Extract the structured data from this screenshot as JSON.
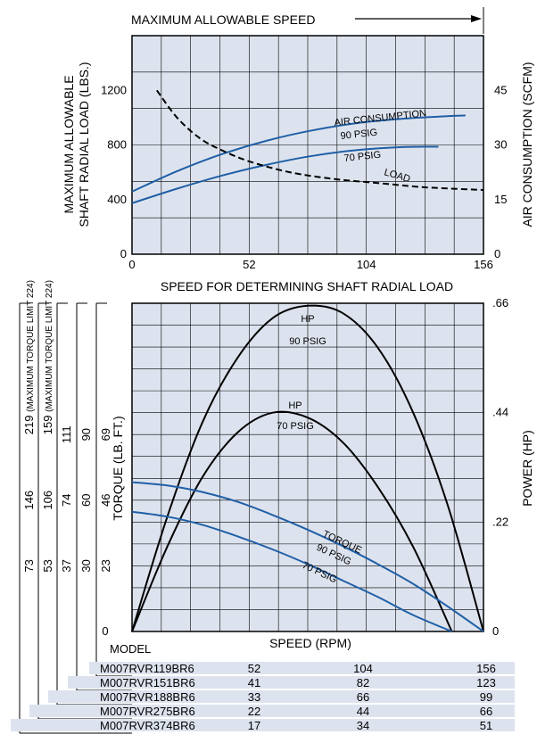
{
  "colors": {
    "plot_bg": "#dde3ee",
    "blue": "#1f5fa6",
    "table_bg": "#dde3ee"
  },
  "top_chart": {
    "header": "MAXIMUM ALLOWABLE SPEED",
    "ylabel_left": [
      "MAXIMUM ALLOWABLE",
      "SHAFT RADIAL LOAD (LBS.)"
    ],
    "ylabel_right": "AIR CONSUMPTION (SCFM)",
    "xlabel": "SPEED FOR DETERMINING SHAFT RADIAL LOAD",
    "label_air": "AIR CONSUMPTION",
    "label_90": "90 PSIG",
    "label_70": "70 PSIG",
    "label_load": "LOAD"
  },
  "bottom_chart": {
    "ylabel_left": "TORQUE (LB. FT.)",
    "ylabel_right": "POWER (HP)",
    "xlabel": "SPEED (RPM)",
    "model_label": "MODEL",
    "hp_label": "HP",
    "hp90_label": "90 PSIG",
    "hp70_label": "70 PSIG",
    "torque_label": "TORQUE",
    "t90_label": "90 PSIG",
    "t70_label": "70 PSIG"
  },
  "chart_data": [
    {
      "type": "line",
      "title": "MAXIMUM ALLOWABLE SPEED",
      "xlabel": "SPEED FOR DETERMINING SHAFT RADIAL LOAD",
      "ylabel": "MAXIMUM ALLOWABLE SHAFT RADIAL LOAD (LBS.)",
      "y2label": "AIR CONSUMPTION (SCFM)",
      "xlim": [
        0,
        156
      ],
      "ylim": [
        0,
        1600
      ],
      "y2lim": [
        0,
        60
      ],
      "x_ticks": [
        "0",
        "52",
        "104",
        "156"
      ],
      "y_ticks": [
        "0",
        "400",
        "800",
        "1200"
      ],
      "y2_ticks": [
        "0",
        "15",
        "30",
        "45"
      ],
      "grid": true,
      "series": [
        {
          "name": "AIR CONSUMPTION 90 PSIG",
          "axis": "right",
          "style": "solid",
          "x": [
            0,
            20,
            40,
            60,
            80,
            100,
            120,
            140,
            148
          ],
          "y": [
            17.2,
            22.8,
            27.5,
            31.2,
            34.0,
            36.0,
            37.2,
            37.9,
            38.1
          ]
        },
        {
          "name": "70 PSIG",
          "axis": "right",
          "style": "solid",
          "x": [
            0,
            20,
            40,
            60,
            80,
            100,
            120,
            136
          ],
          "y": [
            14.0,
            18.0,
            21.6,
            24.6,
            27.0,
            28.6,
            29.4,
            29.5
          ]
        },
        {
          "name": "LOAD",
          "axis": "left",
          "style": "dashed",
          "x": [
            11,
            20,
            30,
            40,
            52,
            70,
            90,
            110,
            130,
            156
          ],
          "y": [
            1200,
            1000,
            850,
            760,
            680,
            600,
            550,
            520,
            490,
            470
          ]
        }
      ]
    },
    {
      "type": "line",
      "xlabel": "SPEED (RPM)",
      "ylabel": "TORQUE (LB. FT.)",
      "y2label": "POWER (HP)",
      "xlim": [
        0,
        1
      ],
      "ylim": [
        0,
        1
      ],
      "y2lim": [
        0,
        0.66
      ],
      "y2_ticks": [
        "0",
        ".22",
        ".44",
        ".66"
      ],
      "grid": true,
      "torque_columns": [
        {
          "ticks": [
            "73",
            "146"
          ]
        },
        {
          "ticks": [
            "53",
            "106"
          ]
        },
        {
          "ticks": [
            "37",
            "74",
            "111"
          ]
        },
        {
          "ticks": [
            "30",
            "60",
            "90"
          ]
        },
        {
          "ticks": [
            "23",
            "46",
            "69"
          ]
        }
      ],
      "limit_notes": [
        {
          "value": "219",
          "note": "(MAXIMUM TORQUE LIMIT 224)"
        },
        {
          "value": "159",
          "note": "(MAXIMUM TORQUE LIMIT 224)"
        }
      ],
      "series": [
        {
          "name": "HP 90 PSIG",
          "axis": "right",
          "style": "solid",
          "x": [
            0,
            0.1,
            0.2,
            0.3,
            0.4,
            0.5,
            0.6,
            0.7,
            0.8,
            0.9,
            1.0
          ],
          "y": [
            0,
            0.23,
            0.42,
            0.55,
            0.63,
            0.655,
            0.64,
            0.57,
            0.44,
            0.25,
            0
          ]
        },
        {
          "name": "HP 70 PSIG",
          "axis": "right",
          "style": "solid",
          "x": [
            0,
            0.1,
            0.2,
            0.3,
            0.4,
            0.5,
            0.6,
            0.7,
            0.8,
            0.91
          ],
          "y": [
            0,
            0.17,
            0.31,
            0.4,
            0.44,
            0.43,
            0.38,
            0.29,
            0.17,
            0
          ]
        },
        {
          "name": "TORQUE 90 PSIG",
          "axis": "left",
          "style": "solid",
          "x": [
            0,
            0.1,
            0.2,
            0.3,
            0.4,
            0.5,
            0.6,
            0.7,
            0.8,
            0.9,
            1.0
          ],
          "y": [
            0.455,
            0.445,
            0.425,
            0.395,
            0.355,
            0.31,
            0.26,
            0.205,
            0.145,
            0.075,
            0
          ]
        },
        {
          "name": "TORQUE 70 PSIG",
          "axis": "left",
          "style": "solid",
          "x": [
            0,
            0.1,
            0.2,
            0.3,
            0.4,
            0.5,
            0.6,
            0.7,
            0.8,
            0.91
          ],
          "y": [
            0.365,
            0.35,
            0.325,
            0.29,
            0.25,
            0.205,
            0.155,
            0.105,
            0.05,
            0
          ]
        }
      ]
    },
    {
      "type": "table",
      "columns": [
        "MODEL",
        "",
        "",
        ""
      ],
      "rows": [
        {
          "model": "M007RVR119BR6",
          "values": [
            "52",
            "104",
            "156"
          ]
        },
        {
          "model": "M007RVR151BR6",
          "values": [
            "41",
            "82",
            "123"
          ]
        },
        {
          "model": "M007RVR188BR6",
          "values": [
            "33",
            "66",
            "99"
          ]
        },
        {
          "model": "M007RVR275BR6",
          "values": [
            "22",
            "44",
            "66"
          ]
        },
        {
          "model": "M007RVR374BR6",
          "values": [
            "17",
            "34",
            "51"
          ]
        }
      ]
    }
  ]
}
